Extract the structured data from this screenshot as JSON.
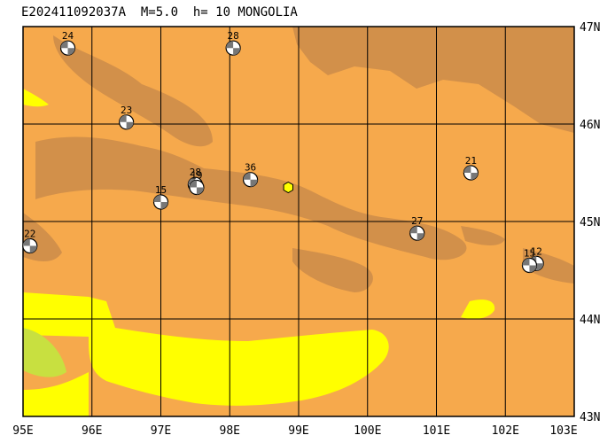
{
  "title": "E202411092037A  M=5.0  h= 10 MONGOLIA",
  "map": {
    "lon_range": [
      95,
      103
    ],
    "lat_range": [
      43,
      47
    ],
    "lon_ticks": [
      {
        "value": 95,
        "label": "95E"
      },
      {
        "value": 96,
        "label": "96E"
      },
      {
        "value": 97,
        "label": "97E"
      },
      {
        "value": 98,
        "label": "98E"
      },
      {
        "value": 99,
        "label": "99E"
      },
      {
        "value": 100,
        "label": "100E"
      },
      {
        "value": 101,
        "label": "101E"
      },
      {
        "value": 102,
        "label": "102E"
      },
      {
        "value": 103,
        "label": "103E"
      }
    ],
    "lat_ticks": [
      {
        "value": 47,
        "label": "47N"
      },
      {
        "value": 46,
        "label": "46N"
      },
      {
        "value": 45,
        "label": "45N"
      },
      {
        "value": 44,
        "label": "44N"
      },
      {
        "value": 43,
        "label": "43N"
      }
    ],
    "colors": {
      "lowland": "#f6a94c",
      "highland": "#d2904a",
      "plain": "#ffff00",
      "green": "#c8e040",
      "grid": "#000000",
      "event": "#ffff00"
    },
    "event": {
      "lon": 98.85,
      "lat": 45.35
    },
    "mechanisms": [
      {
        "label": "24",
        "lon": 95.65,
        "lat": 46.78
      },
      {
        "label": "28",
        "lon": 98.05,
        "lat": 46.78
      },
      {
        "label": "23",
        "lon": 96.5,
        "lat": 46.02
      },
      {
        "label": "36",
        "lon": 98.3,
        "lat": 45.43
      },
      {
        "label": "28",
        "lon": 97.5,
        "lat": 45.38
      },
      {
        "label": "19",
        "lon": 97.52,
        "lat": 45.35
      },
      {
        "label": "15",
        "lon": 97.0,
        "lat": 45.2
      },
      {
        "label": "21",
        "lon": 101.5,
        "lat": 45.5
      },
      {
        "label": "22",
        "lon": 95.1,
        "lat": 44.75
      },
      {
        "label": "27",
        "lon": 100.72,
        "lat": 44.88
      },
      {
        "label": "12",
        "lon": 102.45,
        "lat": 44.57
      },
      {
        "label": "15",
        "lon": 102.35,
        "lat": 44.55
      }
    ]
  }
}
